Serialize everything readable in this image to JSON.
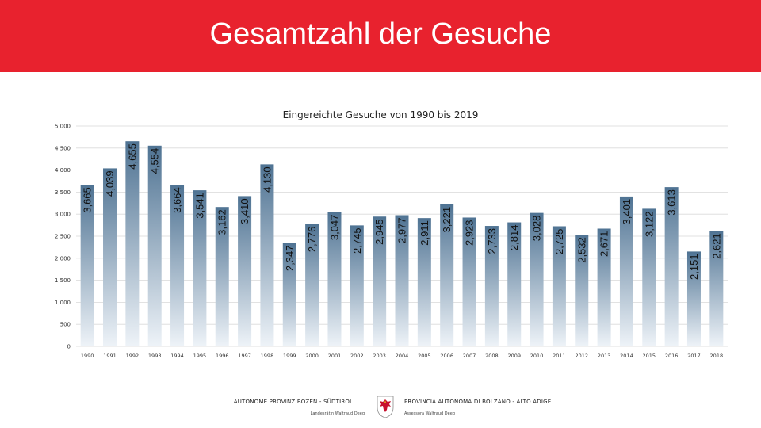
{
  "header": {
    "title": "Gesamtzahl der Gesuche",
    "background_color": "#e8222e"
  },
  "footer": {
    "left_title": "AUTONOME PROVINZ BOZEN - SÜDTIROL",
    "left_subtitle": "Landesrätin Waltraud Deeg",
    "right_title": "PROVINCIA AUTONOMA DI BOLZANO - ALTO ADIGE",
    "right_subtitle": "Assessora Waltraud Deeg",
    "logo": "south-tyrol-eagle-emblem"
  },
  "chart_data": {
    "type": "bar",
    "title": "Eingereichte Gesuche von 1990 bis 2019",
    "xlabel": "",
    "ylabel": "",
    "ylim": [
      0,
      5000
    ],
    "yticks": [
      "0",
      "500",
      "1,000",
      "1,500",
      "2,000",
      "2,500",
      "3,000",
      "3,500",
      "4,000",
      "4,500",
      "5,000"
    ],
    "yticks_values": [
      0,
      500,
      1000,
      1500,
      2000,
      2500,
      3000,
      3500,
      4000,
      4500,
      5000
    ],
    "categories": [
      "1990",
      "1991",
      "1992",
      "1993",
      "1994",
      "1995",
      "1996",
      "1997",
      "1998",
      "1999",
      "2000",
      "2001",
      "2002",
      "2003",
      "2004",
      "2005",
      "2006",
      "2007",
      "2008",
      "2009",
      "2010",
      "2011",
      "2012",
      "2013",
      "2014",
      "2015",
      "2016",
      "2017",
      "2018"
    ],
    "values": [
      3665,
      4039,
      4655,
      4554,
      3664,
      3541,
      3162,
      3410,
      4130,
      2347,
      2776,
      3047,
      2745,
      2945,
      2977,
      2911,
      3221,
      2923,
      2733,
      2814,
      3028,
      2725,
      2532,
      2671,
      3401,
      3122,
      3613,
      2151,
      2621
    ],
    "labels": [
      "3,665",
      "4,039",
      "4,655",
      "4,554",
      "3,664",
      "3,541",
      "3,162",
      "3,410",
      "4,130",
      "2,347",
      "2,776",
      "3,047",
      "2,745",
      "2,945",
      "2,977",
      "2,911",
      "3,221",
      "2,923",
      "2,733",
      "2,814",
      "3,028",
      "2,725",
      "2,532",
      "2,671",
      "3,401",
      "3,122",
      "3,613",
      "2,151",
      "2,621"
    ],
    "grid": true,
    "legend": "none",
    "bar_color_top": "#4f7393",
    "bar_color_bottom": "#eef3f8"
  }
}
